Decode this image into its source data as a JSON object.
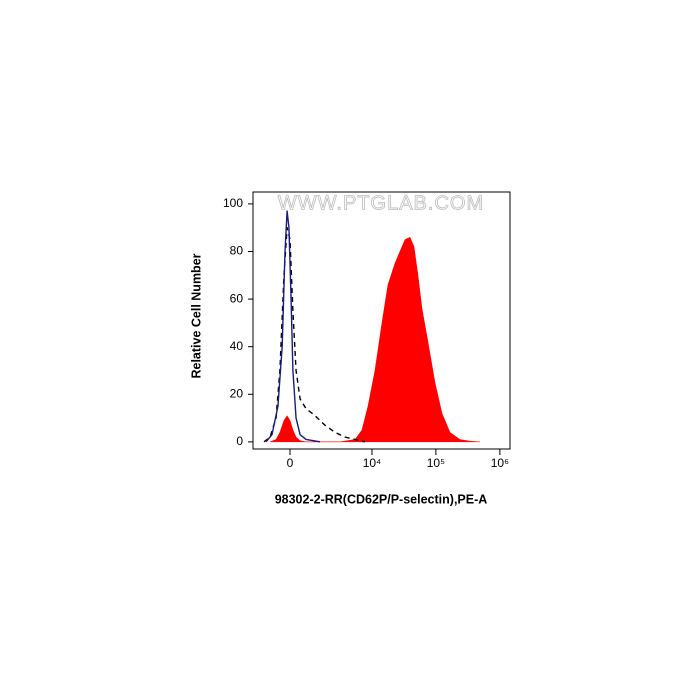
{
  "chart_data": {
    "type": "histogram-overlay",
    "watermark": "WWW.PTGLAB.COM",
    "xlabel": "98302-2-RR(CD62P/P-selectin),PE-A",
    "ylabel": "Relative Cell Number",
    "xscale": "biexponential",
    "xlim": [
      -1850,
      1440000
    ],
    "ylim": [
      -3,
      105
    ],
    "xticks": [
      0,
      {
        "value": 10000,
        "label": "10⁴"
      },
      {
        "value": 100000,
        "label": "10⁵"
      },
      {
        "value": 1000000,
        "label": "10⁶"
      }
    ],
    "yticks": [
      0,
      20,
      40,
      60,
      80,
      100
    ],
    "series": [
      {
        "style": "filled",
        "color": "#ff0000",
        "x": [
          -820,
          -550,
          -390,
          -230,
          -110,
          0,
          110,
          230,
          390,
          640,
          3100,
          5400,
          6950,
          8660,
          11150,
          14350,
          17800,
          22900,
          27450,
          32900,
          39400,
          45500,
          52500,
          60600,
          75200,
          96700,
          124400,
          166000,
          237000,
          340000,
          488000
        ],
        "values": [
          0,
          1,
          4,
          9,
          11,
          9,
          5,
          2,
          0.5,
          0,
          0,
          1,
          5,
          15,
          30,
          50,
          66,
          75,
          80,
          85,
          86,
          82,
          70,
          56,
          42,
          25,
          12,
          4,
          1,
          0.3,
          0
        ]
      },
      {
        "style": "dashed",
        "color": "#000000",
        "x": [
          -1130,
          -820,
          -550,
          -390,
          -230,
          -110,
          0,
          110,
          230,
          390,
          640,
          1080,
          1700,
          2550,
          3730,
          5400,
          7740
        ],
        "values": [
          0,
          2,
          10,
          30,
          70,
          90,
          85,
          55,
          30,
          18,
          14,
          11,
          7,
          4,
          2,
          1,
          0
        ]
      },
      {
        "style": "solid",
        "color": "#1a1a80",
        "x": [
          -1020,
          -730,
          -470,
          -300,
          -190,
          -110,
          -40,
          40,
          110,
          230,
          390,
          640,
          1370
        ],
        "values": [
          0,
          3,
          15,
          40,
          80,
          97,
          90,
          60,
          30,
          10,
          3,
          1,
          0
        ]
      }
    ]
  }
}
